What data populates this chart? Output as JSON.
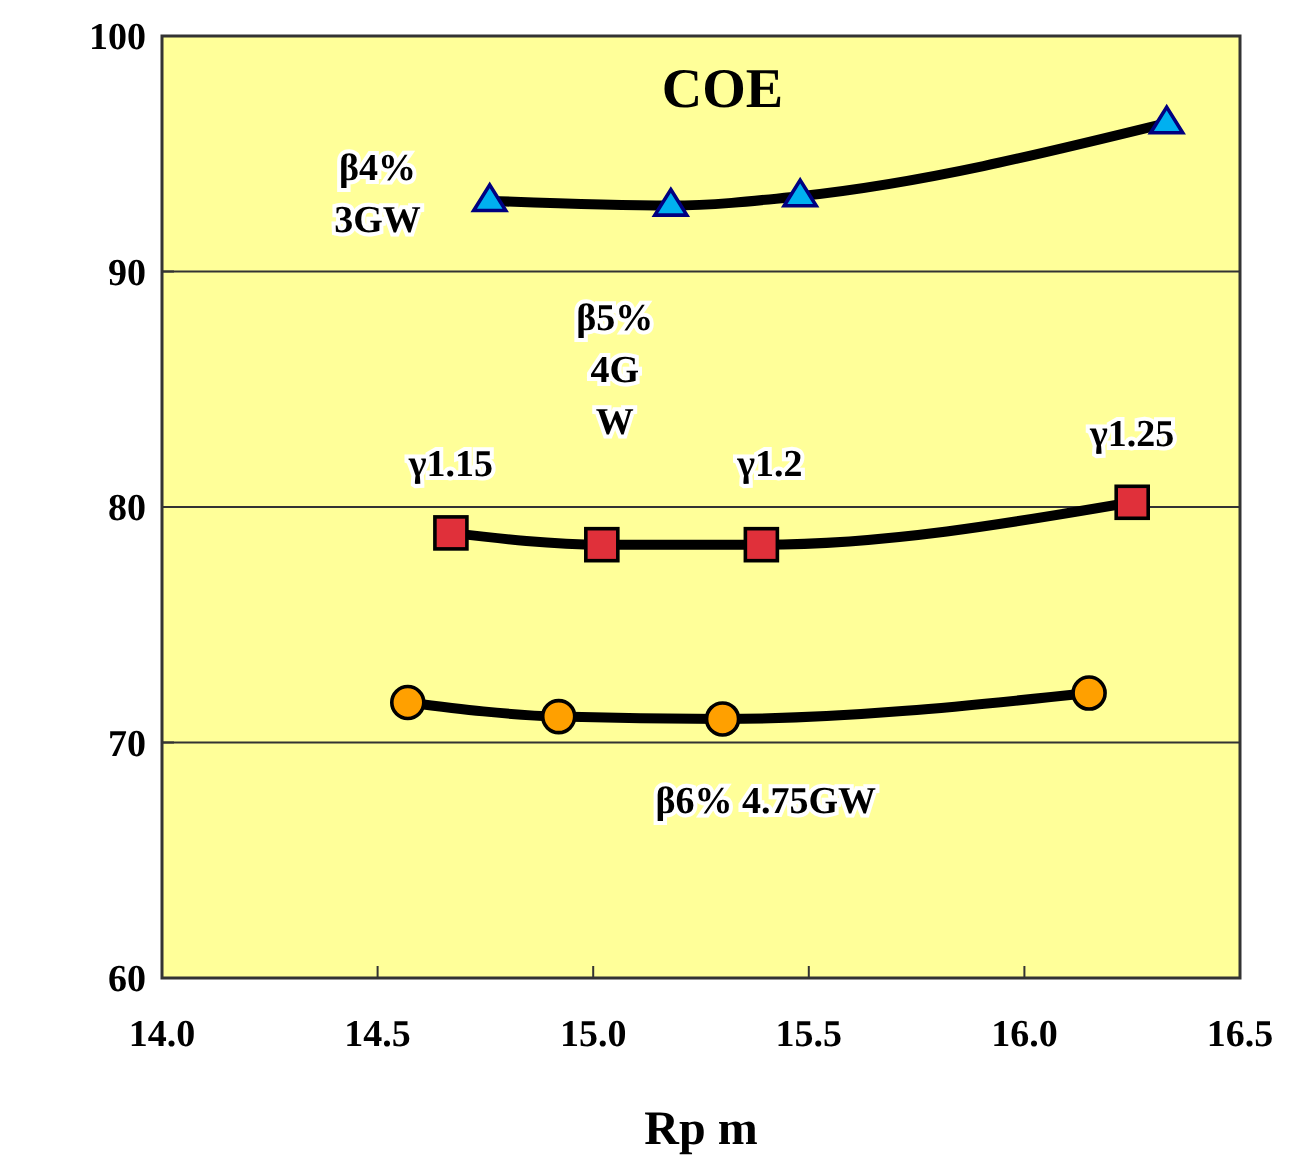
{
  "chart_data": {
    "type": "line",
    "title": "COE",
    "xlabel": "Rp m",
    "xlim": [
      14,
      16.5
    ],
    "xticks": [
      {
        "value": 14,
        "label": "14.0"
      },
      14.5,
      {
        "value": 15,
        "label": "15.0"
      },
      15.5,
      {
        "value": 16,
        "label": "16.0"
      },
      16.5
    ],
    "ylim": [
      60,
      100
    ],
    "yticks": [
      60,
      70,
      80,
      90,
      100
    ],
    "grid": "y",
    "series": [
      {
        "color": "#00b0f0",
        "marker": "triangle",
        "x": [
          14.76,
          15.18,
          15.48,
          16.33
        ],
        "values": [
          93.0,
          92.8,
          93.2,
          96.3
        ]
      },
      {
        "color": "#e0303a",
        "marker": "square",
        "x": [
          14.67,
          15.02,
          15.39,
          16.25
        ],
        "values": [
          78.9,
          78.4,
          78.4,
          80.2
        ]
      },
      {
        "color": "#ffa000",
        "marker": "circle",
        "x": [
          14.57,
          14.92,
          15.3,
          16.15
        ],
        "values": [
          71.7,
          71.1,
          71.0,
          72.1
        ]
      }
    ],
    "annotations": [
      "β4%\n3GW",
      "β5%\n4G\nW",
      "γ1.15",
      "γ1.2",
      "γ1.25",
      "β6% 4.75GW"
    ]
  }
}
